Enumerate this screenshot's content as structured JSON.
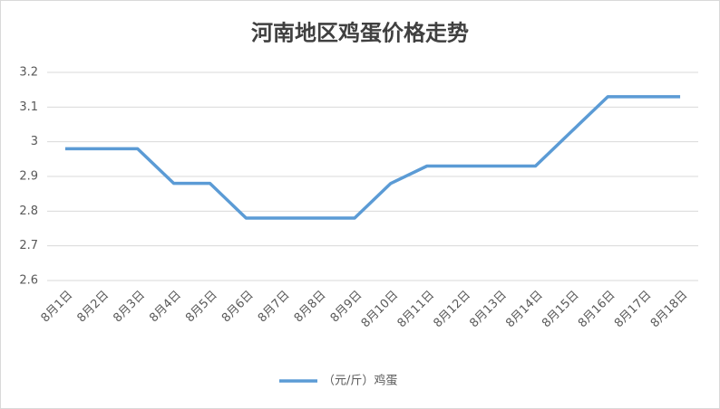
{
  "chart_data": {
    "type": "line",
    "title": "河南地区鸡蛋价格走势",
    "categories": [
      "8月1日",
      "8月2日",
      "8月3日",
      "8月4日",
      "8月5日",
      "8月6日",
      "8月7日",
      "8月8日",
      "8月9日",
      "8月10日",
      "8月11日",
      "8月12日",
      "8月13日",
      "8月14日",
      "8月15日",
      "8月16日",
      "8月17日",
      "8月18日"
    ],
    "series": [
      {
        "name": "（元/斤）鸡蛋",
        "color": "#5b9bd5",
        "values": [
          2.98,
          2.98,
          2.98,
          2.88,
          2.88,
          2.78,
          2.78,
          2.78,
          2.78,
          2.88,
          2.93,
          2.93,
          2.93,
          2.93,
          3.03,
          3.13,
          3.13,
          3.13
        ]
      }
    ],
    "ylim": [
      2.6,
      3.2
    ],
    "yticks": [
      2.6,
      2.7,
      2.8,
      2.9,
      3,
      3.1,
      3.2
    ],
    "grid": true,
    "legend": "bottom"
  }
}
